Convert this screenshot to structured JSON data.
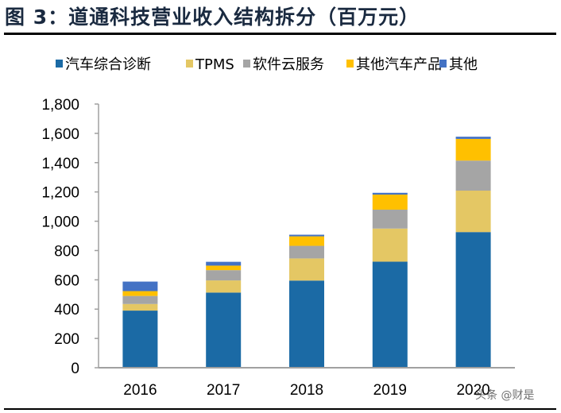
{
  "title": "图 3：道通科技营业收入结构拆分（百万元）",
  "watermark": "头条 @财是",
  "chart_data": {
    "type": "bar",
    "stacked": true,
    "title": "图 3：道通科技营业收入结构拆分（百万元）",
    "categories": [
      "2016",
      "2017",
      "2018",
      "2019",
      "2020"
    ],
    "series": [
      {
        "name": "汽车综合诊断",
        "color": "#1b6aa5",
        "values": [
          390,
          513,
          595,
          724,
          926
        ]
      },
      {
        "name": "TPMS",
        "color": "#e4c764",
        "values": [
          45,
          83,
          151,
          226,
          283
        ]
      },
      {
        "name": "软件云服务",
        "color": "#a5a5a5",
        "values": [
          55,
          70,
          86,
          129,
          205
        ]
      },
      {
        "name": "其他汽车产品",
        "color": "#ffc000",
        "values": [
          33,
          31,
          65,
          103,
          148
        ]
      },
      {
        "name": "其他",
        "color": "#4472c4",
        "values": [
          65,
          26,
          11,
          12,
          15
        ]
      }
    ],
    "ylim": [
      0,
      1800
    ],
    "yticks": [
      "0",
      "200",
      "400",
      "600",
      "800",
      "1,000",
      "1,200",
      "1,400",
      "1,600",
      "1,800"
    ],
    "legend": "top",
    "grid": false,
    "xlabel": "",
    "ylabel": ""
  }
}
